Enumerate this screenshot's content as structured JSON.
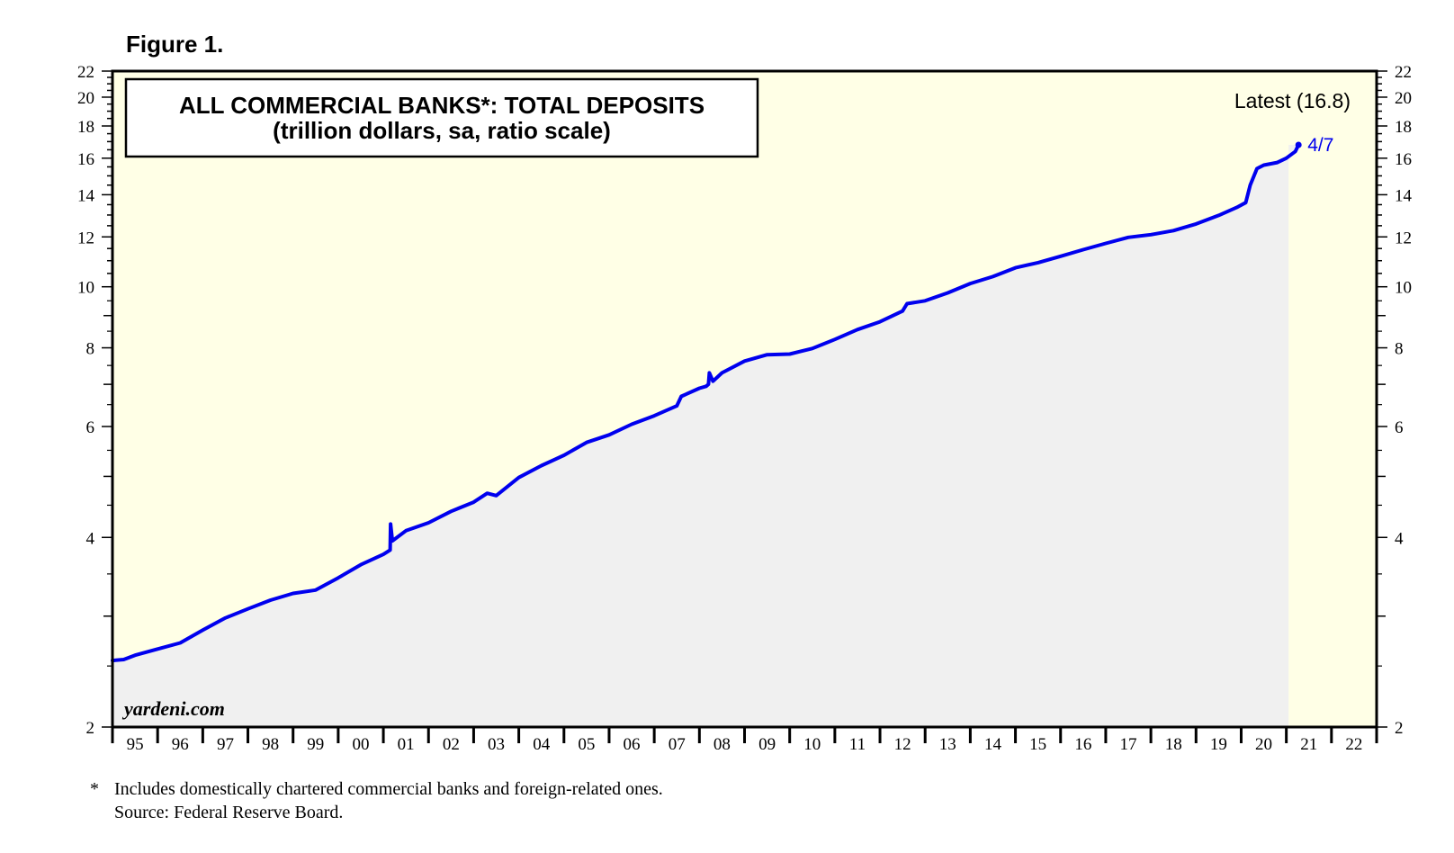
{
  "figure_label": "Figure 1.",
  "colors": {
    "plot_background": "#ffffe6",
    "area_fill": "#f0f0f0",
    "line": "#0000ee",
    "frame": "#000000"
  },
  "chart_data": {
    "type": "line",
    "scale": "log",
    "title": "ALL COMMERCIAL BANKS*: TOTAL DEPOSITS",
    "subtitle": "(trillion dollars, sa, ratio scale)",
    "latest_label": "Latest (16.8)",
    "end_label": "4/7",
    "watermark": "yardeni.com",
    "series_name": "Total deposits",
    "x_axis": {
      "range": [
        1995,
        2023
      ],
      "tick_labels": [
        "95",
        "96",
        "97",
        "98",
        "99",
        "00",
        "01",
        "02",
        "03",
        "04",
        "05",
        "06",
        "07",
        "08",
        "09",
        "10",
        "11",
        "12",
        "13",
        "14",
        "15",
        "16",
        "17",
        "18",
        "19",
        "20",
        "21",
        "22"
      ]
    },
    "y_axis": {
      "range": [
        2,
        22
      ],
      "labeled_ticks": [
        2,
        4,
        6,
        8,
        10,
        12,
        14,
        16,
        18,
        20,
        22
      ],
      "minor_ticks": [
        3,
        5,
        7,
        9
      ]
    },
    "points": [
      {
        "x": 1995.0,
        "y": 2.55
      },
      {
        "x": 1995.25,
        "y": 2.56
      },
      {
        "x": 1995.5,
        "y": 2.6
      },
      {
        "x": 1996.0,
        "y": 2.66
      },
      {
        "x": 1996.5,
        "y": 2.72
      },
      {
        "x": 1997.0,
        "y": 2.85
      },
      {
        "x": 1997.5,
        "y": 2.98
      },
      {
        "x": 1998.0,
        "y": 3.08
      },
      {
        "x": 1998.5,
        "y": 3.18
      },
      {
        "x": 1999.0,
        "y": 3.26
      },
      {
        "x": 1999.5,
        "y": 3.3
      },
      {
        "x": 2000.0,
        "y": 3.45
      },
      {
        "x": 2000.5,
        "y": 3.62
      },
      {
        "x": 2001.0,
        "y": 3.76
      },
      {
        "x": 2001.15,
        "y": 3.82
      },
      {
        "x": 2001.16,
        "y": 4.2
      },
      {
        "x": 2001.2,
        "y": 3.95
      },
      {
        "x": 2001.5,
        "y": 4.1
      },
      {
        "x": 2002.0,
        "y": 4.22
      },
      {
        "x": 2002.5,
        "y": 4.4
      },
      {
        "x": 2003.0,
        "y": 4.55
      },
      {
        "x": 2003.3,
        "y": 4.7
      },
      {
        "x": 2003.5,
        "y": 4.66
      },
      {
        "x": 2004.0,
        "y": 4.98
      },
      {
        "x": 2004.5,
        "y": 5.2
      },
      {
        "x": 2005.0,
        "y": 5.4
      },
      {
        "x": 2005.5,
        "y": 5.66
      },
      {
        "x": 2006.0,
        "y": 5.82
      },
      {
        "x": 2006.5,
        "y": 6.05
      },
      {
        "x": 2007.0,
        "y": 6.24
      },
      {
        "x": 2007.5,
        "y": 6.47
      },
      {
        "x": 2007.6,
        "y": 6.7
      },
      {
        "x": 2008.0,
        "y": 6.9
      },
      {
        "x": 2008.15,
        "y": 6.95
      },
      {
        "x": 2008.2,
        "y": 7.0
      },
      {
        "x": 2008.22,
        "y": 7.3
      },
      {
        "x": 2008.3,
        "y": 7.08
      },
      {
        "x": 2008.5,
        "y": 7.3
      },
      {
        "x": 2009.0,
        "y": 7.62
      },
      {
        "x": 2009.5,
        "y": 7.8
      },
      {
        "x": 2010.0,
        "y": 7.82
      },
      {
        "x": 2010.5,
        "y": 7.98
      },
      {
        "x": 2011.0,
        "y": 8.25
      },
      {
        "x": 2011.5,
        "y": 8.55
      },
      {
        "x": 2012.0,
        "y": 8.8
      },
      {
        "x": 2012.5,
        "y": 9.15
      },
      {
        "x": 2012.6,
        "y": 9.4
      },
      {
        "x": 2013.0,
        "y": 9.5
      },
      {
        "x": 2013.5,
        "y": 9.78
      },
      {
        "x": 2014.0,
        "y": 10.12
      },
      {
        "x": 2014.5,
        "y": 10.38
      },
      {
        "x": 2015.0,
        "y": 10.72
      },
      {
        "x": 2015.5,
        "y": 10.92
      },
      {
        "x": 2016.0,
        "y": 11.18
      },
      {
        "x": 2016.5,
        "y": 11.45
      },
      {
        "x": 2017.0,
        "y": 11.72
      },
      {
        "x": 2017.5,
        "y": 11.98
      },
      {
        "x": 2018.0,
        "y": 12.1
      },
      {
        "x": 2018.5,
        "y": 12.28
      },
      {
        "x": 2019.0,
        "y": 12.58
      },
      {
        "x": 2019.5,
        "y": 12.98
      },
      {
        "x": 2019.9,
        "y": 13.36
      },
      {
        "x": 2020.1,
        "y": 13.6
      },
      {
        "x": 2020.2,
        "y": 14.5
      },
      {
        "x": 2020.35,
        "y": 15.4
      },
      {
        "x": 2020.5,
        "y": 15.6
      },
      {
        "x": 2020.8,
        "y": 15.75
      },
      {
        "x": 2021.0,
        "y": 16.0
      },
      {
        "x": 2021.2,
        "y": 16.4
      },
      {
        "x": 2021.27,
        "y": 16.8
      }
    ]
  },
  "footnotes": {
    "star": "*",
    "text": "Includes domestically chartered commercial banks and foreign-related ones.",
    "source": "Source: Federal Reserve Board."
  }
}
